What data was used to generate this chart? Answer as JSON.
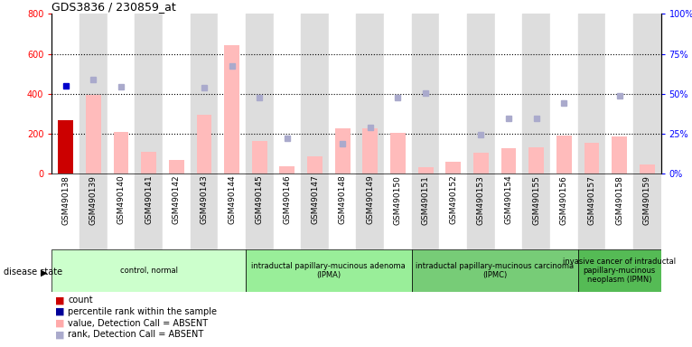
{
  "title": "GDS3836 / 230859_at",
  "samples": [
    "GSM490138",
    "GSM490139",
    "GSM490140",
    "GSM490141",
    "GSM490142",
    "GSM490143",
    "GSM490144",
    "GSM490145",
    "GSM490146",
    "GSM490147",
    "GSM490148",
    "GSM490149",
    "GSM490150",
    "GSM490151",
    "GSM490152",
    "GSM490153",
    "GSM490154",
    "GSM490155",
    "GSM490156",
    "GSM490157",
    "GSM490158",
    "GSM490159"
  ],
  "bar_values": [
    265,
    395,
    210,
    110,
    70,
    295,
    645,
    165,
    35,
    85,
    225,
    225,
    205,
    30,
    60,
    105,
    125,
    130,
    190,
    155,
    185,
    45
  ],
  "bar_absent": [
    false,
    true,
    true,
    true,
    true,
    true,
    true,
    true,
    true,
    true,
    true,
    true,
    true,
    true,
    true,
    true,
    true,
    true,
    true,
    true,
    true,
    true
  ],
  "rank_dots": [
    440,
    470,
    435,
    null,
    null,
    430,
    540,
    380,
    175,
    null,
    150,
    230,
    380,
    405,
    null,
    195,
    275,
    275,
    355,
    null,
    390,
    null
  ],
  "rank_absent": [
    false,
    true,
    true,
    null,
    null,
    true,
    true,
    true,
    true,
    null,
    true,
    true,
    true,
    true,
    null,
    true,
    true,
    true,
    true,
    null,
    true,
    null
  ],
  "ylim_left": [
    0,
    800
  ],
  "ylim_right": [
    0,
    100
  ],
  "left_yticks": [
    0,
    200,
    400,
    600,
    800
  ],
  "right_yticks": [
    0,
    25,
    50,
    75,
    100
  ],
  "groups": [
    {
      "label": "control, normal",
      "start": 0,
      "end": 7,
      "color": "#ccffcc"
    },
    {
      "label": "intraductal papillary-mucinous adenoma\n(IPMA)",
      "start": 7,
      "end": 13,
      "color": "#99ee99"
    },
    {
      "label": "intraductal papillary-mucinous carcinoma\n(IPMC)",
      "start": 13,
      "end": 19,
      "color": "#77cc77"
    },
    {
      "label": "invasive cancer of intraductal\npapillary-mucinous\nneoplasm (IPMN)",
      "start": 19,
      "end": 22,
      "color": "#55bb55"
    }
  ],
  "legend_items": [
    {
      "label": "count",
      "color": "#cc0000"
    },
    {
      "label": "percentile rank within the sample",
      "color": "#000099"
    },
    {
      "label": "value, Detection Call = ABSENT",
      "color": "#ffaaaa"
    },
    {
      "label": "rank, Detection Call = ABSENT",
      "color": "#aaaacc"
    }
  ],
  "bar_color_present": "#cc0000",
  "bar_color_absent": "#ffbbbb",
  "dot_color_present": "#0000cc",
  "dot_color_absent": "#aaaacc",
  "col_bg_odd": "#dddddd",
  "col_bg_even": "#ffffff"
}
